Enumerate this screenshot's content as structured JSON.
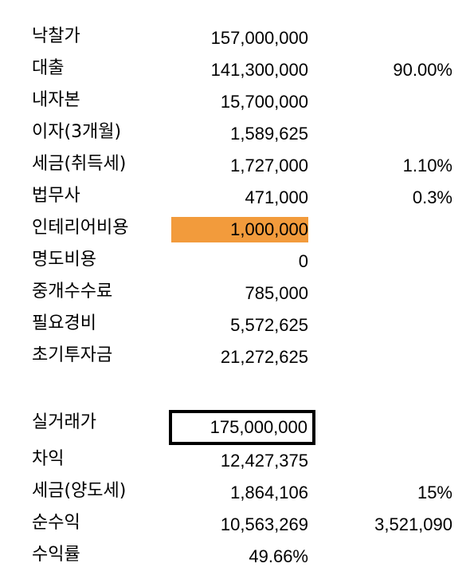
{
  "colors": {
    "highlight_fill": "#F29B3C",
    "border": "#000000"
  },
  "rows": [
    {
      "label": "낙찰가",
      "value": "157,000,000",
      "extra": ""
    },
    {
      "label": "대출",
      "value": "141,300,000",
      "extra": "90.00%"
    },
    {
      "label": "내자본",
      "value": "15,700,000",
      "extra": ""
    },
    {
      "label": "이자(3개월)",
      "value": "1,589,625",
      "extra": ""
    },
    {
      "label": "세금(취득세)",
      "value": "1,727,000",
      "extra": "1.10%"
    },
    {
      "label": "법무사",
      "value": "471,000",
      "extra": "0.3%"
    },
    {
      "label": "인테리어비용",
      "value": "1,000,000",
      "extra": ""
    },
    {
      "label": "명도비용",
      "value": "0",
      "extra": ""
    },
    {
      "label": "중개수수료",
      "value": "785,000",
      "extra": ""
    },
    {
      "label": "필요경비",
      "value": "5,572,625",
      "extra": ""
    },
    {
      "label": "초기투자금",
      "value": "21,272,625",
      "extra": ""
    },
    {
      "label": "실거래가",
      "value": "175,000,000",
      "extra": ""
    },
    {
      "label": "차익",
      "value": "12,427,375",
      "extra": ""
    },
    {
      "label": "세금(양도세)",
      "value": "1,864,106",
      "extra": "15%"
    },
    {
      "label": "순수익",
      "value": "10,563,269",
      "extra": "3,521,090"
    },
    {
      "label": "수익률",
      "value": "49.66%",
      "extra": ""
    }
  ]
}
